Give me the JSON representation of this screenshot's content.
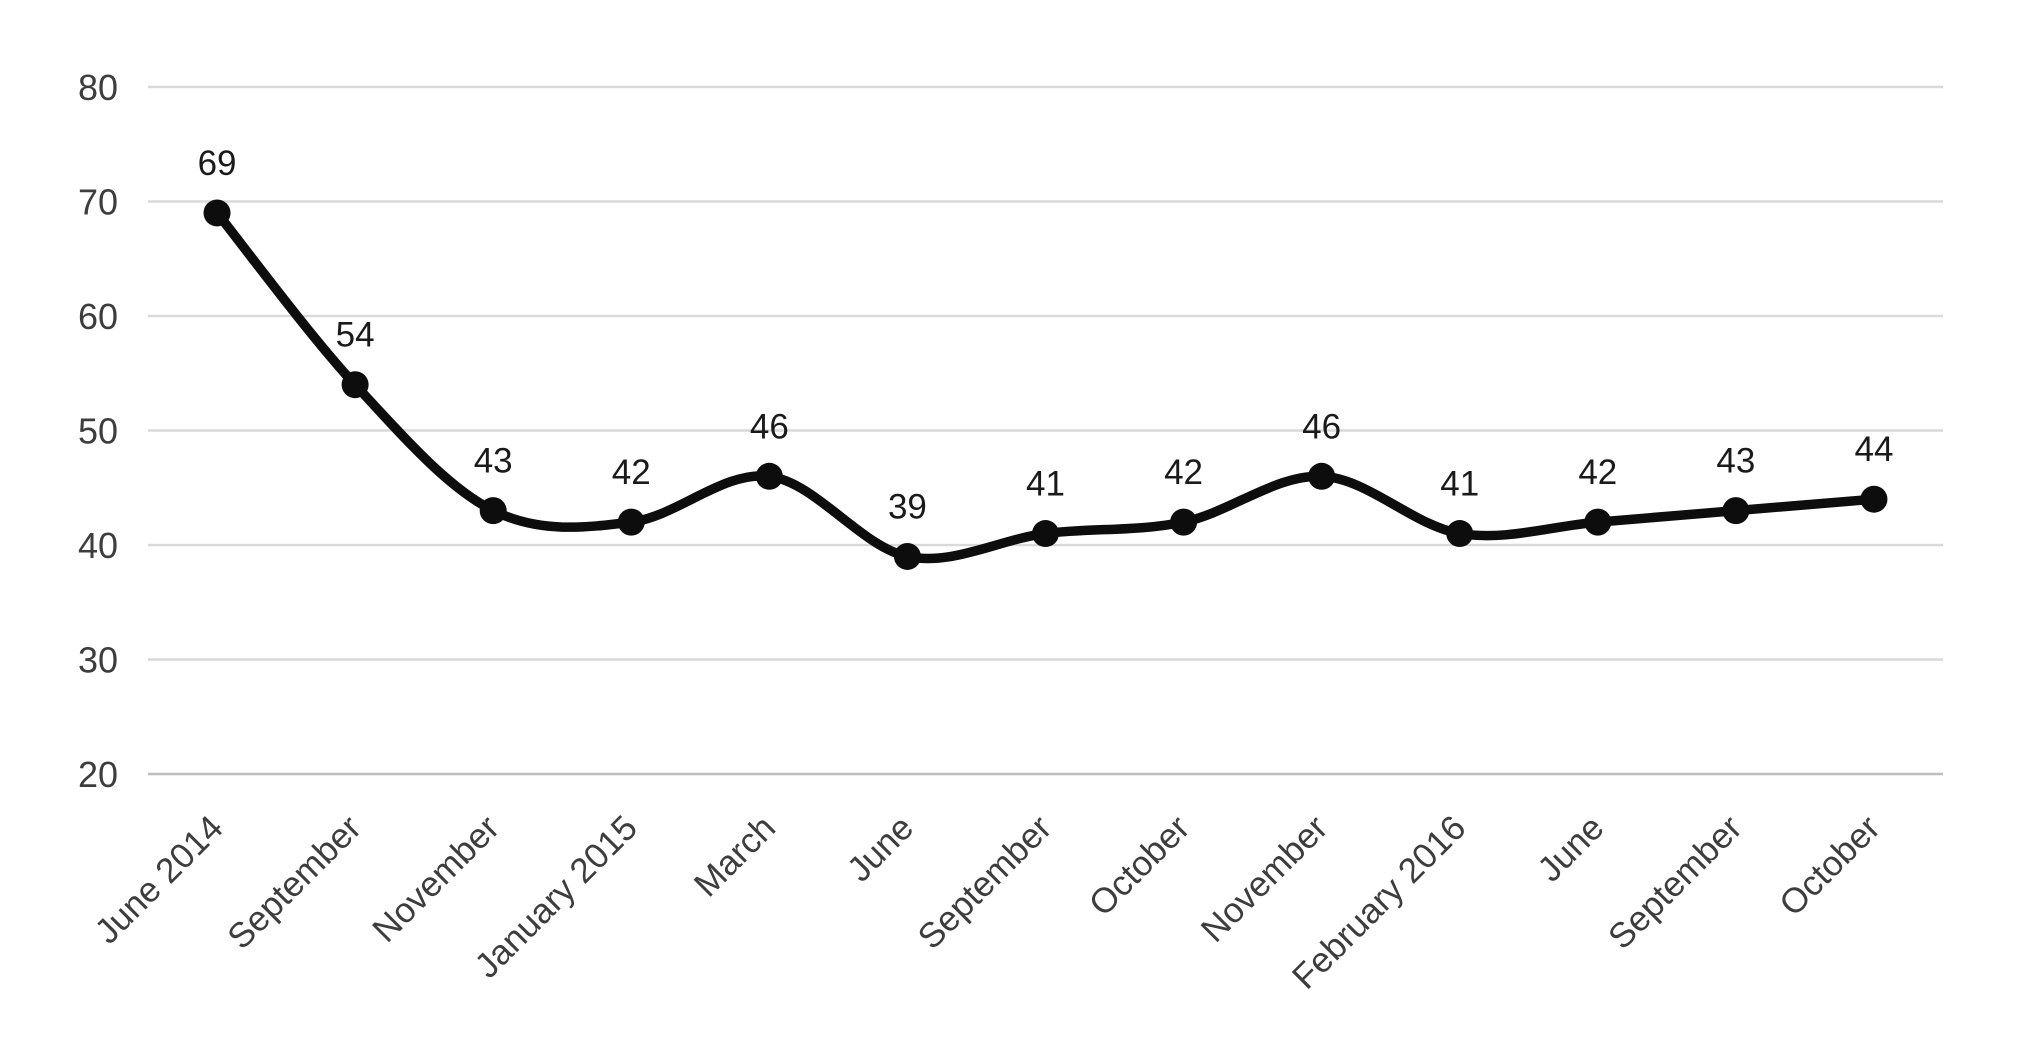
{
  "chart_data": {
    "type": "line",
    "title": "",
    "xlabel": "",
    "ylabel": "",
    "categories": [
      "June 2014",
      "September",
      "November",
      "January 2015",
      "March",
      "June",
      "September",
      "October",
      "November",
      "February 2016",
      "June",
      "September",
      "October"
    ],
    "values": [
      69,
      54,
      43,
      42,
      46,
      39,
      41,
      42,
      46,
      41,
      42,
      43,
      44
    ],
    "ylim": [
      20,
      80
    ],
    "yticks": [
      20,
      30,
      40,
      50,
      60,
      70,
      80
    ],
    "grid": true,
    "legend_position": "none",
    "smooth": true,
    "marker": "circle",
    "data_labels_visible": true,
    "colors": {
      "line": "#0d0d0d",
      "marker": "#0d0d0d",
      "grid": "#d9d9d9",
      "axis_line": "#bdbdbd",
      "axis_text": "#3d3d3d",
      "data_label_text": "#1a1a1a",
      "background": "#ffffff"
    }
  }
}
